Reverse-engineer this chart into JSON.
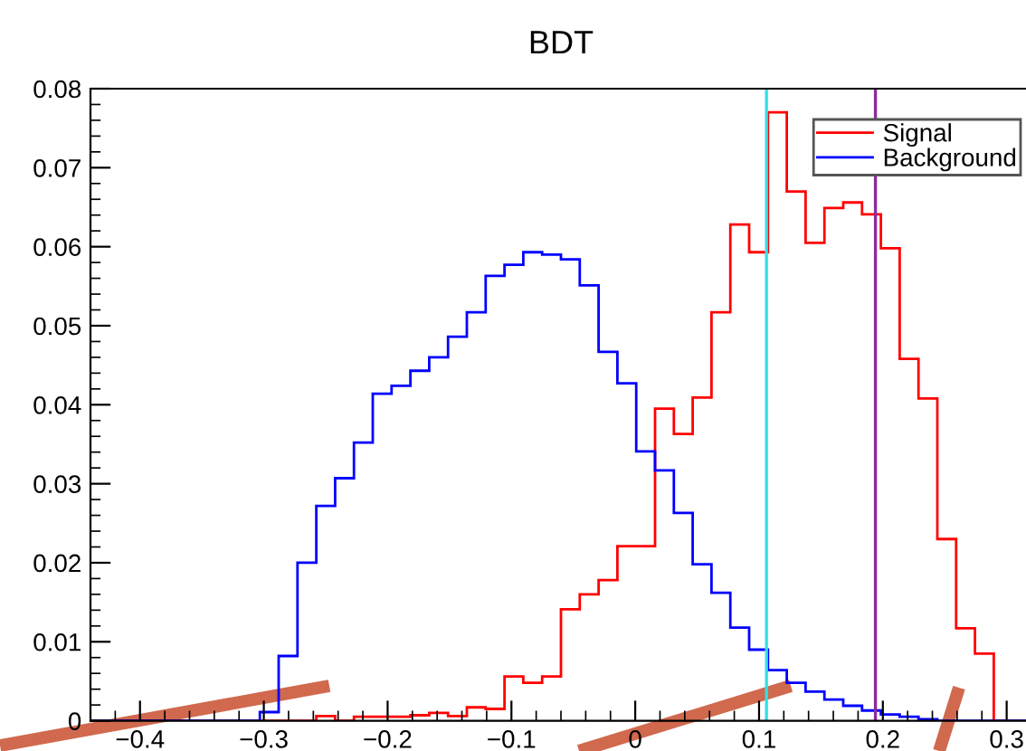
{
  "chart_data": {
    "type": "histogram",
    "title": "BDT",
    "bins": [
      -0.44,
      -0.4248,
      -0.4096,
      -0.3944,
      -0.3792,
      -0.364,
      -0.3488,
      -0.3336,
      -0.3184,
      -0.3032,
      -0.288,
      -0.2728,
      -0.2576,
      -0.2424,
      -0.2272,
      -0.212,
      -0.1968,
      -0.1816,
      -0.1664,
      -0.1512,
      -0.136,
      -0.1208,
      -0.1056,
      -0.0904,
      -0.0752,
      -0.06,
      -0.0448,
      -0.0296,
      -0.0144,
      0.0008,
      0.016,
      0.0312,
      0.0464,
      0.0616,
      0.0768,
      0.092,
      0.1072,
      0.1224,
      0.1376,
      0.1528,
      0.168,
      0.1832,
      0.1984,
      0.2136,
      0.2288,
      0.244,
      0.2592,
      0.2744,
      0.2896,
      0.3048,
      0.32
    ],
    "series": [
      {
        "name": "Signal",
        "color": "#ff0000",
        "values": [
          0,
          0,
          0,
          0,
          0,
          0,
          0,
          0,
          0,
          0,
          0,
          0,
          0.0006,
          0,
          0.0005,
          0.0005,
          0.0005,
          0.0007,
          0.001,
          0.0006,
          0.0017,
          0.0015,
          0.0056,
          0.0048,
          0.0056,
          0.0141,
          0.016,
          0.0178,
          0.0221,
          0.0221,
          0.0395,
          0.0363,
          0.0409,
          0.0517,
          0.0628,
          0.0593,
          0.077,
          0.067,
          0.0605,
          0.0649,
          0.0656,
          0.0641,
          0.0598,
          0.0458,
          0.0408,
          0.023,
          0.0117,
          0.0085,
          0,
          0
        ]
      },
      {
        "name": "Background",
        "color": "#0000ff",
        "values": [
          0,
          0,
          0,
          0,
          0,
          0,
          0,
          0,
          0,
          0.0011,
          0.0082,
          0.02,
          0.0272,
          0.0307,
          0.0352,
          0.0414,
          0.0424,
          0.0443,
          0.046,
          0.0486,
          0.0517,
          0.0563,
          0.0577,
          0.0593,
          0.059,
          0.0584,
          0.0551,
          0.0467,
          0.0427,
          0.0341,
          0.0317,
          0.0263,
          0.0198,
          0.0162,
          0.0118,
          0.009,
          0.0064,
          0.0048,
          0.0037,
          0.0027,
          0.0019,
          0.0013,
          0.0008,
          0.0005,
          0.0002,
          0,
          0,
          0,
          0,
          0
        ]
      }
    ],
    "ref_lines": [
      {
        "axis": "x",
        "value": 0.106,
        "color": "#33e0e6"
      },
      {
        "axis": "x",
        "value": 0.194,
        "color": "#8e2a9e"
      }
    ],
    "xlim": [
      -0.44,
      0.32
    ],
    "xticks": [
      {
        "value": -0.4,
        "label": "−0.4"
      },
      {
        "value": -0.3,
        "label": "−0.3"
      },
      {
        "value": -0.2,
        "label": "−0.2"
      },
      {
        "value": -0.1,
        "label": "−0.1"
      },
      0,
      0.1,
      0.2,
      0.3
    ],
    "ylim": [
      0,
      0.08
    ],
    "yticks": [
      0,
      0.01,
      0.02,
      0.03,
      0.04,
      0.05,
      0.06,
      0.07,
      0.08
    ],
    "grid": false,
    "legend": "top right"
  }
}
